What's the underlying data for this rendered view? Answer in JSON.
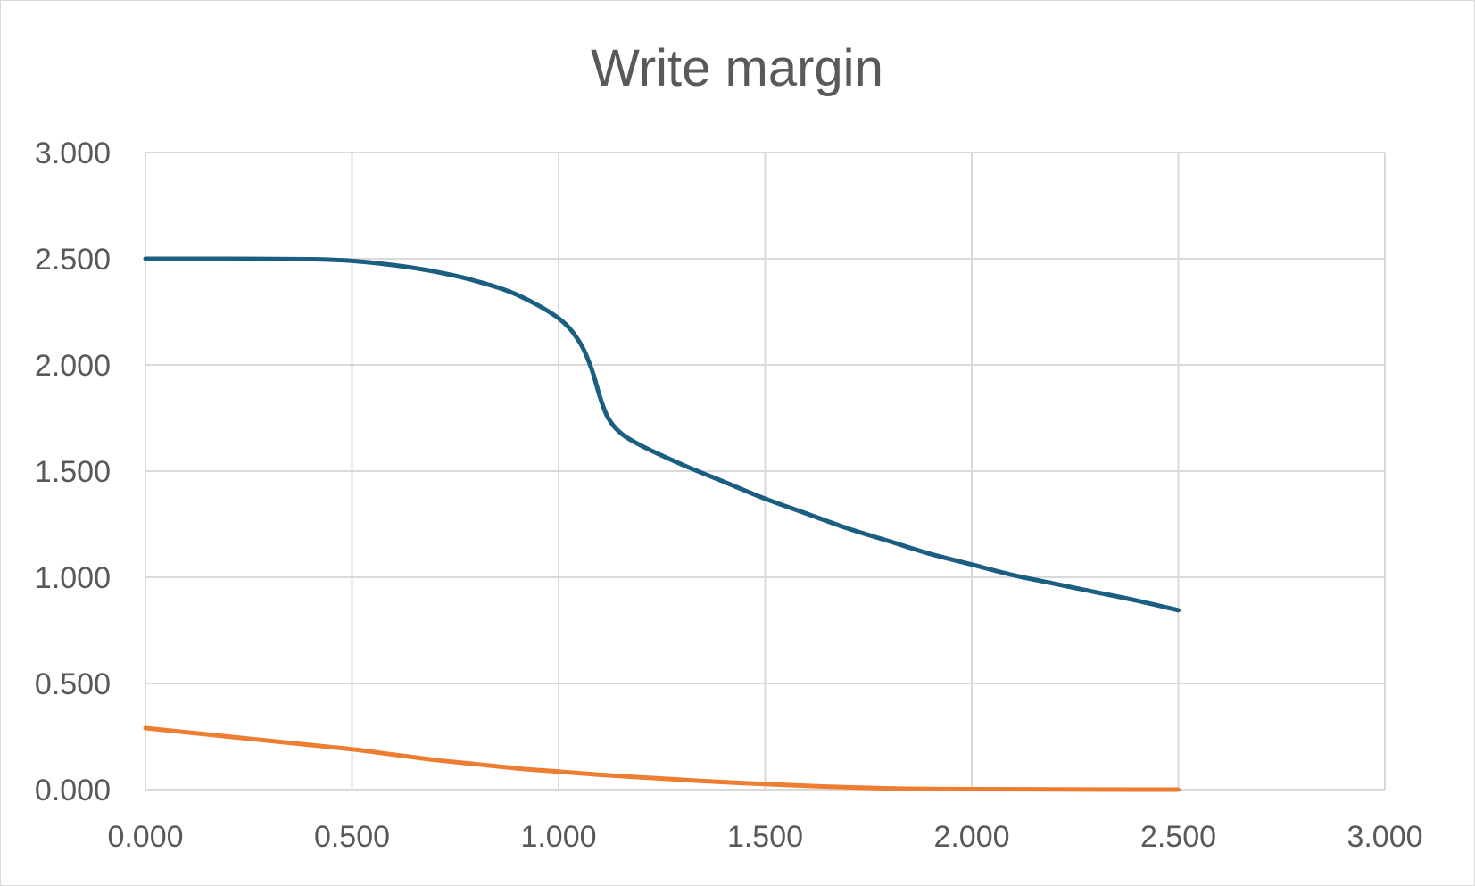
{
  "chart_data": {
    "type": "line",
    "title": "Write margin",
    "xlabel": "",
    "ylabel": "",
    "xlim": [
      0,
      3
    ],
    "ylim": [
      0,
      3
    ],
    "x_ticks": [
      "0.000",
      "0.500",
      "1.000",
      "1.500",
      "2.000",
      "2.500",
      "3.000"
    ],
    "y_ticks": [
      "0.000",
      "0.500",
      "1.000",
      "1.500",
      "2.000",
      "2.500",
      "3.000"
    ],
    "grid": true,
    "legend": "none",
    "series": [
      {
        "color": "#1a5f82",
        "points": [
          [
            0.0,
            2.5
          ],
          [
            0.2,
            2.5
          ],
          [
            0.4,
            2.498
          ],
          [
            0.5,
            2.49
          ],
          [
            0.6,
            2.47
          ],
          [
            0.7,
            2.44
          ],
          [
            0.8,
            2.395
          ],
          [
            0.9,
            2.33
          ],
          [
            1.0,
            2.22
          ],
          [
            1.05,
            2.11
          ],
          [
            1.08,
            1.98
          ],
          [
            1.1,
            1.85
          ],
          [
            1.12,
            1.75
          ],
          [
            1.15,
            1.68
          ],
          [
            1.2,
            1.62
          ],
          [
            1.3,
            1.53
          ],
          [
            1.4,
            1.45
          ],
          [
            1.5,
            1.37
          ],
          [
            1.6,
            1.3
          ],
          [
            1.7,
            1.23
          ],
          [
            1.8,
            1.17
          ],
          [
            1.9,
            1.11
          ],
          [
            2.0,
            1.06
          ],
          [
            2.1,
            1.01
          ],
          [
            2.2,
            0.97
          ],
          [
            2.3,
            0.93
          ],
          [
            2.4,
            0.89
          ],
          [
            2.5,
            0.845
          ]
        ]
      },
      {
        "color": "#ed7d31",
        "points": [
          [
            0.0,
            0.29
          ],
          [
            0.1,
            0.27
          ],
          [
            0.2,
            0.25
          ],
          [
            0.3,
            0.23
          ],
          [
            0.4,
            0.21
          ],
          [
            0.5,
            0.19
          ],
          [
            0.6,
            0.165
          ],
          [
            0.7,
            0.14
          ],
          [
            0.8,
            0.12
          ],
          [
            0.9,
            0.1
          ],
          [
            1.0,
            0.085
          ],
          [
            1.1,
            0.07
          ],
          [
            1.2,
            0.058
          ],
          [
            1.3,
            0.046
          ],
          [
            1.4,
            0.035
          ],
          [
            1.5,
            0.026
          ],
          [
            1.6,
            0.018
          ],
          [
            1.7,
            0.011
          ],
          [
            1.8,
            0.006
          ],
          [
            1.9,
            0.003
          ],
          [
            2.0,
            0.002
          ],
          [
            2.2,
            0.001
          ],
          [
            2.4,
            0.0
          ],
          [
            2.5,
            0.0
          ]
        ]
      }
    ]
  }
}
